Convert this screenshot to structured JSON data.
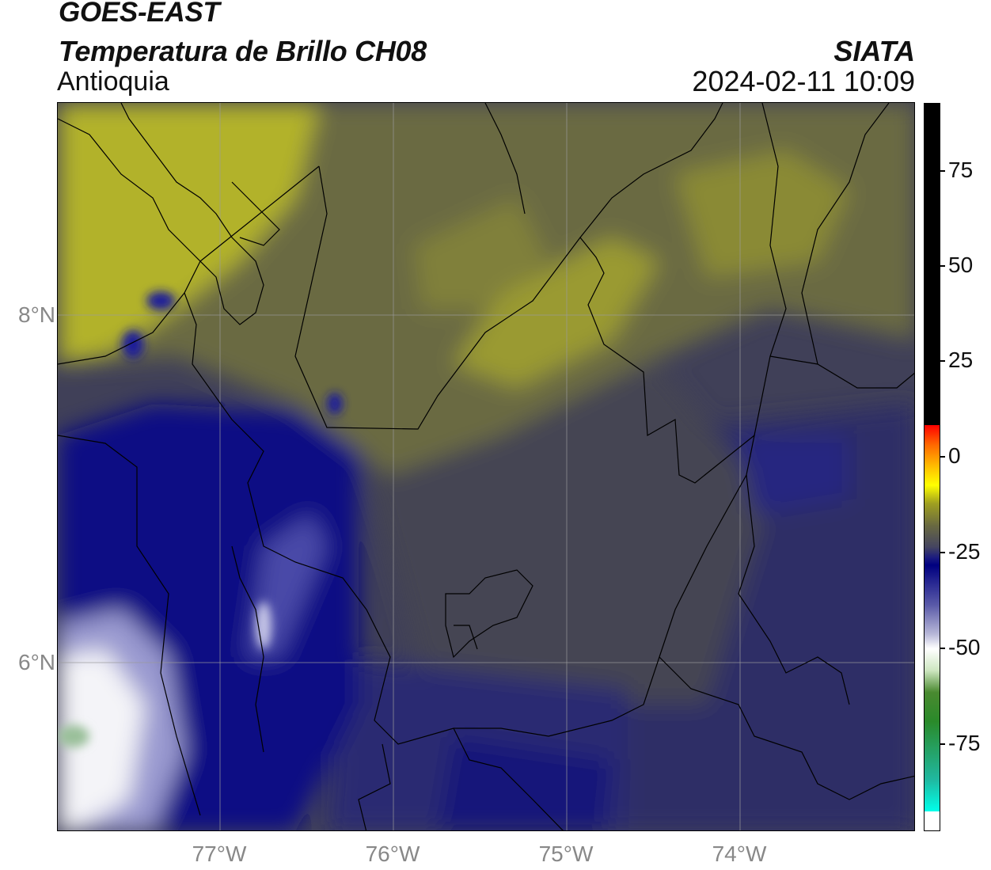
{
  "header": {
    "satellite": "GOES-EAST",
    "product": "Temperatura de Brillo CH08",
    "region": "Antioquia",
    "organization": "SIATA",
    "timestamp": "2024-02-11 10:09"
  },
  "axes": {
    "latitude_labels": [
      "8°N",
      "6°N"
    ],
    "longitude_labels": [
      "77°W",
      "76°W",
      "75°W",
      "74°W"
    ]
  },
  "colorbar": {
    "tick_labels": [
      "75",
      "50",
      "25",
      "0",
      "-25",
      "-50",
      "-75"
    ],
    "colors": {
      "warm": "#000000",
      "hot": "#ff0000",
      "mid_yellow": "#ffff00",
      "olive": "#6a6a40",
      "navy": "#000080",
      "white": "#ffffff",
      "green": "#2a8a2a",
      "cyan": "#00ffea"
    }
  },
  "map": {
    "graticule": true,
    "colors": {
      "olive_yellow": "#a8a828",
      "olive_grey": "#5e5e48",
      "slate": "#3e3e5a",
      "dark_navy": "#23236e",
      "navy": "#0a0a80",
      "light_blue": "#8a8ac4",
      "white_cloud": "#ffffff",
      "border": "#000000",
      "gridline": "#9a9a9a"
    }
  }
}
